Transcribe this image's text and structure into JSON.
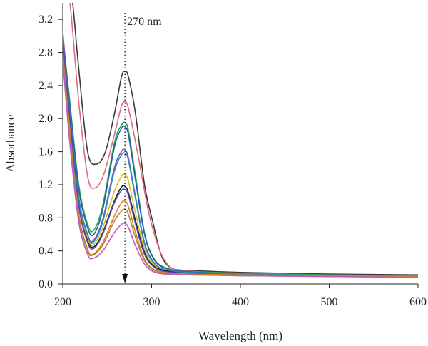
{
  "chart_data": {
    "type": "line",
    "title": "",
    "xlabel": "Wavelength (nm)",
    "ylabel": "Absorbance",
    "xlim": [
      200,
      600
    ],
    "ylim": [
      0.0,
      3.4
    ],
    "xticks": [
      200,
      300,
      400,
      500,
      600
    ],
    "yticks": [
      0.0,
      0.4,
      0.8,
      1.2,
      1.6,
      2.0,
      2.4,
      2.8,
      3.2
    ],
    "ytick_labels": [
      "0.0",
      "0.4",
      "0.8",
      "1.2",
      "1.6",
      "2.0",
      "2.4",
      "2.8",
      "3.2"
    ],
    "grid": false,
    "legend": "none",
    "annotation": {
      "text": "270 nm",
      "x": 270,
      "arrow": "down"
    },
    "series": [
      {
        "color": "#3a3a3a",
        "points": [
          [
            204,
            3.6
          ],
          [
            210,
            3.5
          ],
          [
            218,
            2.6
          ],
          [
            228,
            1.6
          ],
          [
            238,
            1.45
          ],
          [
            248,
            1.6
          ],
          [
            258,
            2.05
          ],
          [
            266,
            2.5
          ],
          [
            270,
            2.57
          ],
          [
            274,
            2.5
          ],
          [
            282,
            2.05
          ],
          [
            292,
            1.2
          ],
          [
            302,
            0.72
          ],
          [
            308,
            0.45
          ],
          [
            314,
            0.28
          ],
          [
            325,
            0.18
          ],
          [
            350,
            0.16
          ],
          [
            400,
            0.14
          ],
          [
            500,
            0.12
          ],
          [
            600,
            0.11
          ]
        ]
      },
      {
        "color": "#e06a7a",
        "points": [
          [
            201,
            3.6
          ],
          [
            208,
            3.4
          ],
          [
            218,
            2.2
          ],
          [
            228,
            1.3
          ],
          [
            236,
            1.16
          ],
          [
            246,
            1.32
          ],
          [
            258,
            1.8
          ],
          [
            266,
            2.15
          ],
          [
            270,
            2.2
          ],
          [
            274,
            2.12
          ],
          [
            284,
            1.6
          ],
          [
            296,
            0.9
          ],
          [
            306,
            0.5
          ],
          [
            314,
            0.3
          ],
          [
            325,
            0.18
          ],
          [
            350,
            0.15
          ],
          [
            400,
            0.13
          ],
          [
            500,
            0.11
          ],
          [
            600,
            0.1
          ]
        ]
      },
      {
        "color": "#2aa84a",
        "points": [
          [
            200,
            3.0
          ],
          [
            208,
            2.2
          ],
          [
            218,
            1.2
          ],
          [
            228,
            0.72
          ],
          [
            235,
            0.65
          ],
          [
            245,
            0.95
          ],
          [
            258,
            1.7
          ],
          [
            266,
            1.92
          ],
          [
            270,
            1.95
          ],
          [
            274,
            1.85
          ],
          [
            282,
            1.3
          ],
          [
            292,
            0.62
          ],
          [
            302,
            0.32
          ],
          [
            315,
            0.2
          ],
          [
            340,
            0.15
          ],
          [
            400,
            0.13
          ],
          [
            500,
            0.11
          ],
          [
            600,
            0.1
          ]
        ]
      },
      {
        "color": "#1f5fa8",
        "points": [
          [
            200,
            2.95
          ],
          [
            208,
            2.15
          ],
          [
            218,
            1.15
          ],
          [
            228,
            0.68
          ],
          [
            235,
            0.6
          ],
          [
            245,
            0.9
          ],
          [
            258,
            1.65
          ],
          [
            266,
            1.88
          ],
          [
            270,
            1.9
          ],
          [
            274,
            1.8
          ],
          [
            282,
            1.25
          ],
          [
            292,
            0.6
          ],
          [
            302,
            0.31
          ],
          [
            315,
            0.19
          ],
          [
            340,
            0.15
          ],
          [
            400,
            0.12
          ],
          [
            500,
            0.1
          ],
          [
            600,
            0.09
          ]
        ]
      },
      {
        "color": "#7a52b3",
        "points": [
          [
            200,
            3.05
          ],
          [
            208,
            2.1
          ],
          [
            218,
            1.05
          ],
          [
            228,
            0.6
          ],
          [
            234,
            0.52
          ],
          [
            245,
            0.78
          ],
          [
            258,
            1.4
          ],
          [
            266,
            1.6
          ],
          [
            270,
            1.62
          ],
          [
            274,
            1.52
          ],
          [
            282,
            1.05
          ],
          [
            292,
            0.5
          ],
          [
            302,
            0.27
          ],
          [
            315,
            0.17
          ],
          [
            340,
            0.14
          ],
          [
            400,
            0.12
          ],
          [
            500,
            0.1
          ],
          [
            600,
            0.09
          ]
        ]
      },
      {
        "color": "#2f8fbf",
        "points": [
          [
            200,
            2.9
          ],
          [
            208,
            2.05
          ],
          [
            218,
            1.02
          ],
          [
            228,
            0.58
          ],
          [
            234,
            0.5
          ],
          [
            245,
            0.75
          ],
          [
            258,
            1.36
          ],
          [
            266,
            1.56
          ],
          [
            270,
            1.58
          ],
          [
            274,
            1.49
          ],
          [
            282,
            1.02
          ],
          [
            292,
            0.48
          ],
          [
            302,
            0.26
          ],
          [
            315,
            0.17
          ],
          [
            340,
            0.14
          ],
          [
            400,
            0.12
          ],
          [
            500,
            0.1
          ],
          [
            600,
            0.09
          ]
        ]
      },
      {
        "color": "#d9c21a",
        "points": [
          [
            200,
            2.85
          ],
          [
            208,
            1.95
          ],
          [
            218,
            0.95
          ],
          [
            228,
            0.55
          ],
          [
            234,
            0.47
          ],
          [
            245,
            0.68
          ],
          [
            258,
            1.12
          ],
          [
            266,
            1.3
          ],
          [
            270,
            1.32
          ],
          [
            274,
            1.24
          ],
          [
            282,
            0.85
          ],
          [
            292,
            0.42
          ],
          [
            302,
            0.24
          ],
          [
            315,
            0.16
          ],
          [
            340,
            0.13
          ],
          [
            400,
            0.11
          ],
          [
            500,
            0.1
          ],
          [
            600,
            0.09
          ]
        ]
      },
      {
        "color": "#1a1a1a",
        "points": [
          [
            200,
            2.9
          ],
          [
            208,
            2.0
          ],
          [
            218,
            0.95
          ],
          [
            228,
            0.52
          ],
          [
            235,
            0.45
          ],
          [
            245,
            0.62
          ],
          [
            258,
            1.0
          ],
          [
            266,
            1.17
          ],
          [
            270,
            1.18
          ],
          [
            274,
            1.1
          ],
          [
            282,
            0.76
          ],
          [
            292,
            0.38
          ],
          [
            302,
            0.22
          ],
          [
            315,
            0.16
          ],
          [
            340,
            0.13
          ],
          [
            400,
            0.11
          ],
          [
            500,
            0.1
          ],
          [
            600,
            0.09
          ]
        ]
      },
      {
        "color": "#4a4fb0",
        "points": [
          [
            200,
            2.95
          ],
          [
            208,
            2.0
          ],
          [
            218,
            0.95
          ],
          [
            228,
            0.5
          ],
          [
            235,
            0.43
          ],
          [
            245,
            0.6
          ],
          [
            258,
            0.98
          ],
          [
            266,
            1.13
          ],
          [
            270,
            1.14
          ],
          [
            274,
            1.07
          ],
          [
            282,
            0.72
          ],
          [
            292,
            0.36
          ],
          [
            302,
            0.21
          ],
          [
            315,
            0.15
          ],
          [
            340,
            0.13
          ],
          [
            400,
            0.11
          ],
          [
            500,
            0.1
          ],
          [
            600,
            0.09
          ]
        ]
      },
      {
        "color": "#e07f2a",
        "points": [
          [
            200,
            2.8
          ],
          [
            208,
            1.85
          ],
          [
            218,
            0.85
          ],
          [
            228,
            0.42
          ],
          [
            234,
            0.36
          ],
          [
            245,
            0.5
          ],
          [
            258,
            0.82
          ],
          [
            266,
            0.98
          ],
          [
            270,
            1.0
          ],
          [
            274,
            0.93
          ],
          [
            282,
            0.62
          ],
          [
            292,
            0.3
          ],
          [
            302,
            0.18
          ],
          [
            315,
            0.14
          ],
          [
            340,
            0.12
          ],
          [
            400,
            0.11
          ],
          [
            500,
            0.1
          ],
          [
            600,
            0.09
          ]
        ]
      },
      {
        "color": "#b0893a",
        "points": [
          [
            200,
            2.75
          ],
          [
            208,
            1.8
          ],
          [
            218,
            0.82
          ],
          [
            228,
            0.4
          ],
          [
            234,
            0.35
          ],
          [
            245,
            0.47
          ],
          [
            258,
            0.76
          ],
          [
            266,
            0.88
          ],
          [
            270,
            0.9
          ],
          [
            274,
            0.84
          ],
          [
            282,
            0.56
          ],
          [
            292,
            0.28
          ],
          [
            302,
            0.17
          ],
          [
            315,
            0.13
          ],
          [
            340,
            0.12
          ],
          [
            400,
            0.1
          ],
          [
            500,
            0.09
          ],
          [
            600,
            0.08
          ]
        ]
      },
      {
        "color": "#c05bb8",
        "points": [
          [
            200,
            2.7
          ],
          [
            208,
            1.7
          ],
          [
            218,
            0.75
          ],
          [
            228,
            0.36
          ],
          [
            234,
            0.31
          ],
          [
            245,
            0.4
          ],
          [
            258,
            0.62
          ],
          [
            266,
            0.72
          ],
          [
            270,
            0.73
          ],
          [
            274,
            0.68
          ],
          [
            282,
            0.46
          ],
          [
            292,
            0.24
          ],
          [
            302,
            0.15
          ],
          [
            315,
            0.12
          ],
          [
            340,
            0.11
          ],
          [
            400,
            0.1
          ],
          [
            500,
            0.09
          ],
          [
            600,
            0.08
          ]
        ]
      }
    ]
  }
}
